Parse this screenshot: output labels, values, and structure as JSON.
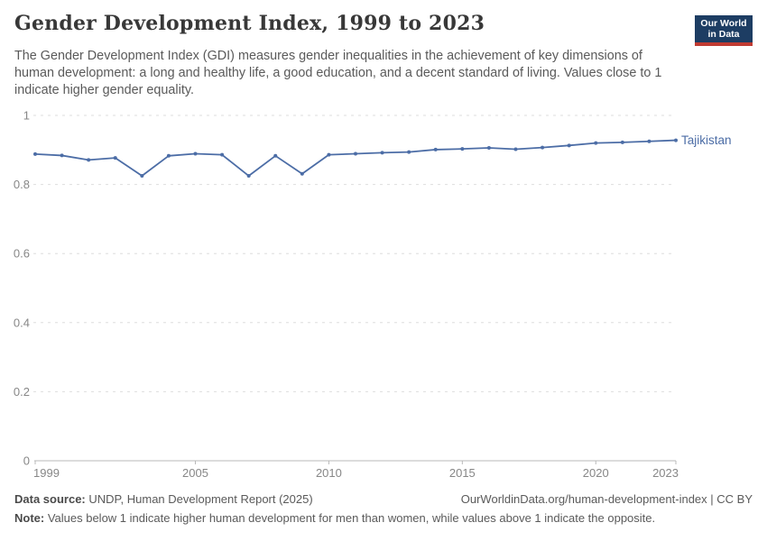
{
  "header": {
    "title": "Gender Development Index, 1999 to 2023",
    "subtitle": "The Gender Development Index (GDI) measures gender inequalities in the achievement of key dimensions of human development: a long and healthy life, a good education, and a decent standard of living. Values close to 1 indicate higher gender equality.",
    "logo": {
      "line1": "Our World",
      "line2": "in Data",
      "bg_color": "#1d3d63",
      "bar_color": "#c13b32"
    }
  },
  "chart_data": {
    "type": "line",
    "title": "Gender Development Index, 1999 to 2023",
    "series": [
      {
        "name": "Tajikistan",
        "x": [
          1999,
          2000,
          2001,
          2002,
          2003,
          2004,
          2005,
          2006,
          2007,
          2008,
          2009,
          2010,
          2011,
          2012,
          2013,
          2014,
          2015,
          2016,
          2017,
          2018,
          2019,
          2020,
          2021,
          2022,
          2023
        ],
        "values": [
          0.888,
          0.884,
          0.871,
          0.877,
          0.825,
          0.883,
          0.889,
          0.886,
          0.825,
          0.883,
          0.831,
          0.886,
          0.889,
          0.892,
          0.894,
          0.901,
          0.903,
          0.906,
          0.902,
          0.907,
          0.913,
          0.92,
          0.922,
          0.925,
          0.928
        ]
      }
    ],
    "xlabel": "",
    "ylabel": "",
    "ylim": [
      0,
      1
    ],
    "yticks": [
      0,
      0.2,
      0.4,
      0.6,
      0.8,
      1
    ],
    "ytick_labels": [
      "0",
      "0.2",
      "0.4",
      "0.6",
      "0.8",
      "1"
    ],
    "xticks": [
      1999,
      2005,
      2010,
      2015,
      2020,
      2023
    ],
    "grid": true,
    "grid_style": "dashed",
    "legend_position": "end-of-line-label",
    "entity_label": "Tajikistan",
    "line_color": "#4c6da6",
    "grid_color": "#dedede",
    "axis_color": "#b9b9b9",
    "tick_text_color": "#878787"
  },
  "footer": {
    "datasource_label": "Data source:",
    "datasource_text": " UNDP, Human Development Report (2025)",
    "link": "OurWorldinData.org/human-development-index | CC BY",
    "note_label": "Note:",
    "note_text": " Values below 1 indicate higher human development for men than women, while values above 1 indicate the opposite."
  }
}
